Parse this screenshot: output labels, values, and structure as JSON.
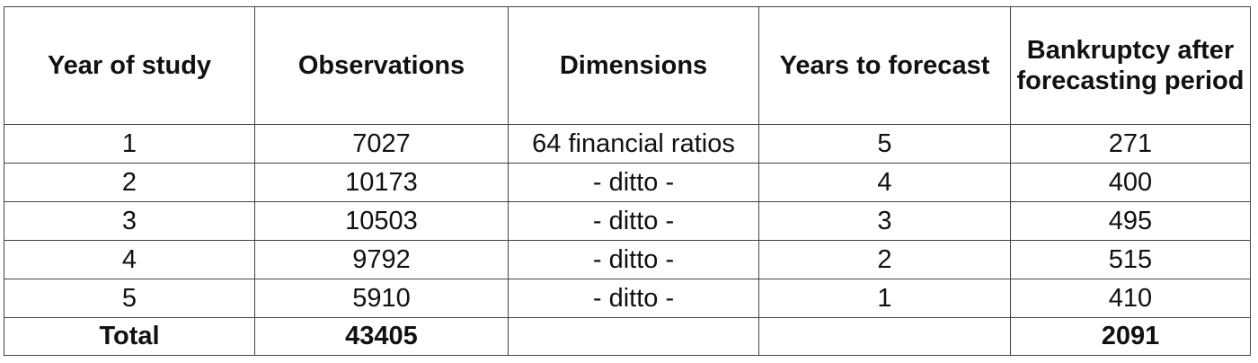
{
  "table": {
    "headers": [
      "Year of study",
      "Observations",
      "Dimensions",
      "Years to forecast",
      "Bankruptcy after forecasting period"
    ],
    "rows": [
      [
        "1",
        "7027",
        "64 financial ratios",
        "5",
        "271"
      ],
      [
        "2",
        "10173",
        "- ditto -",
        "4",
        "400"
      ],
      [
        "3",
        "10503",
        "- ditto -",
        "3",
        "495"
      ],
      [
        "4",
        "9792",
        "- ditto -",
        "2",
        "515"
      ],
      [
        "5",
        "5910",
        "- ditto -",
        "1",
        "410"
      ]
    ],
    "total": [
      "Total",
      "43405",
      "",
      "",
      "2091"
    ]
  }
}
